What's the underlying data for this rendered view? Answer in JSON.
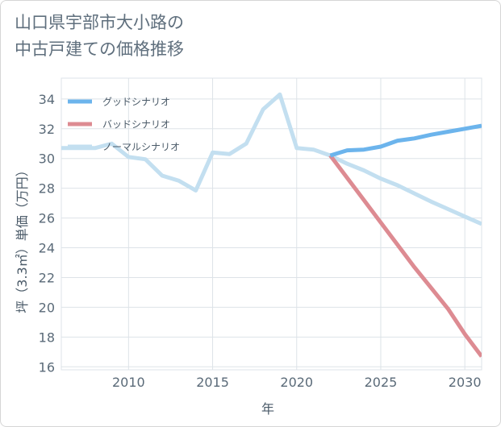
{
  "title": {
    "line1": "山口県宇部市大小路の",
    "line2": "中古戸建ての価格推移"
  },
  "chart_data": {
    "type": "line",
    "title": "山口県宇部市大小路の中古戸建ての価格推移",
    "xlabel": "年",
    "ylabel": "坪（3.3㎡）単価（万円）",
    "xlim": [
      2006,
      2031
    ],
    "ylim": [
      15.8,
      35.4
    ],
    "xticks": [
      2010,
      2015,
      2020,
      2025,
      2030
    ],
    "yticks": [
      16,
      18,
      20,
      22,
      24,
      26,
      28,
      30,
      32,
      34
    ],
    "grid": true,
    "legend_position": "top-left",
    "series": [
      {
        "name": "グッドシナリオ",
        "color": "#6cb4ec",
        "x": [
          2022,
          2023,
          2024,
          2025,
          2026,
          2027,
          2028,
          2029,
          2030,
          2031
        ],
        "values": [
          30.2,
          30.55,
          30.6,
          30.8,
          31.2,
          31.35,
          31.6,
          31.8,
          32.0,
          32.2
        ]
      },
      {
        "name": "バッドシナリオ",
        "color": "#dd8b92",
        "x": [
          2022,
          2023,
          2024,
          2025,
          2026,
          2027,
          2028,
          2029,
          2030,
          2031
        ],
        "values": [
          30.2,
          28.7,
          27.2,
          25.7,
          24.2,
          22.7,
          21.3,
          19.9,
          18.2,
          16.7
        ]
      },
      {
        "name": "ノーマルシナリオ",
        "color": "#c3dff0",
        "x": [
          2006,
          2007,
          2008,
          2009,
          2010,
          2011,
          2012,
          2013,
          2014,
          2015,
          2016,
          2017,
          2018,
          2019,
          2020,
          2021,
          2022,
          2023,
          2024,
          2025,
          2026,
          2027,
          2028,
          2029,
          2030,
          2031
        ],
        "values": [
          30.7,
          30.7,
          30.7,
          31.0,
          30.1,
          29.95,
          28.85,
          28.5,
          27.85,
          30.4,
          30.3,
          31.0,
          33.3,
          34.3,
          30.7,
          30.6,
          30.2,
          29.65,
          29.2,
          28.65,
          28.2,
          27.65,
          27.1,
          26.6,
          26.1,
          25.6
        ]
      }
    ]
  }
}
